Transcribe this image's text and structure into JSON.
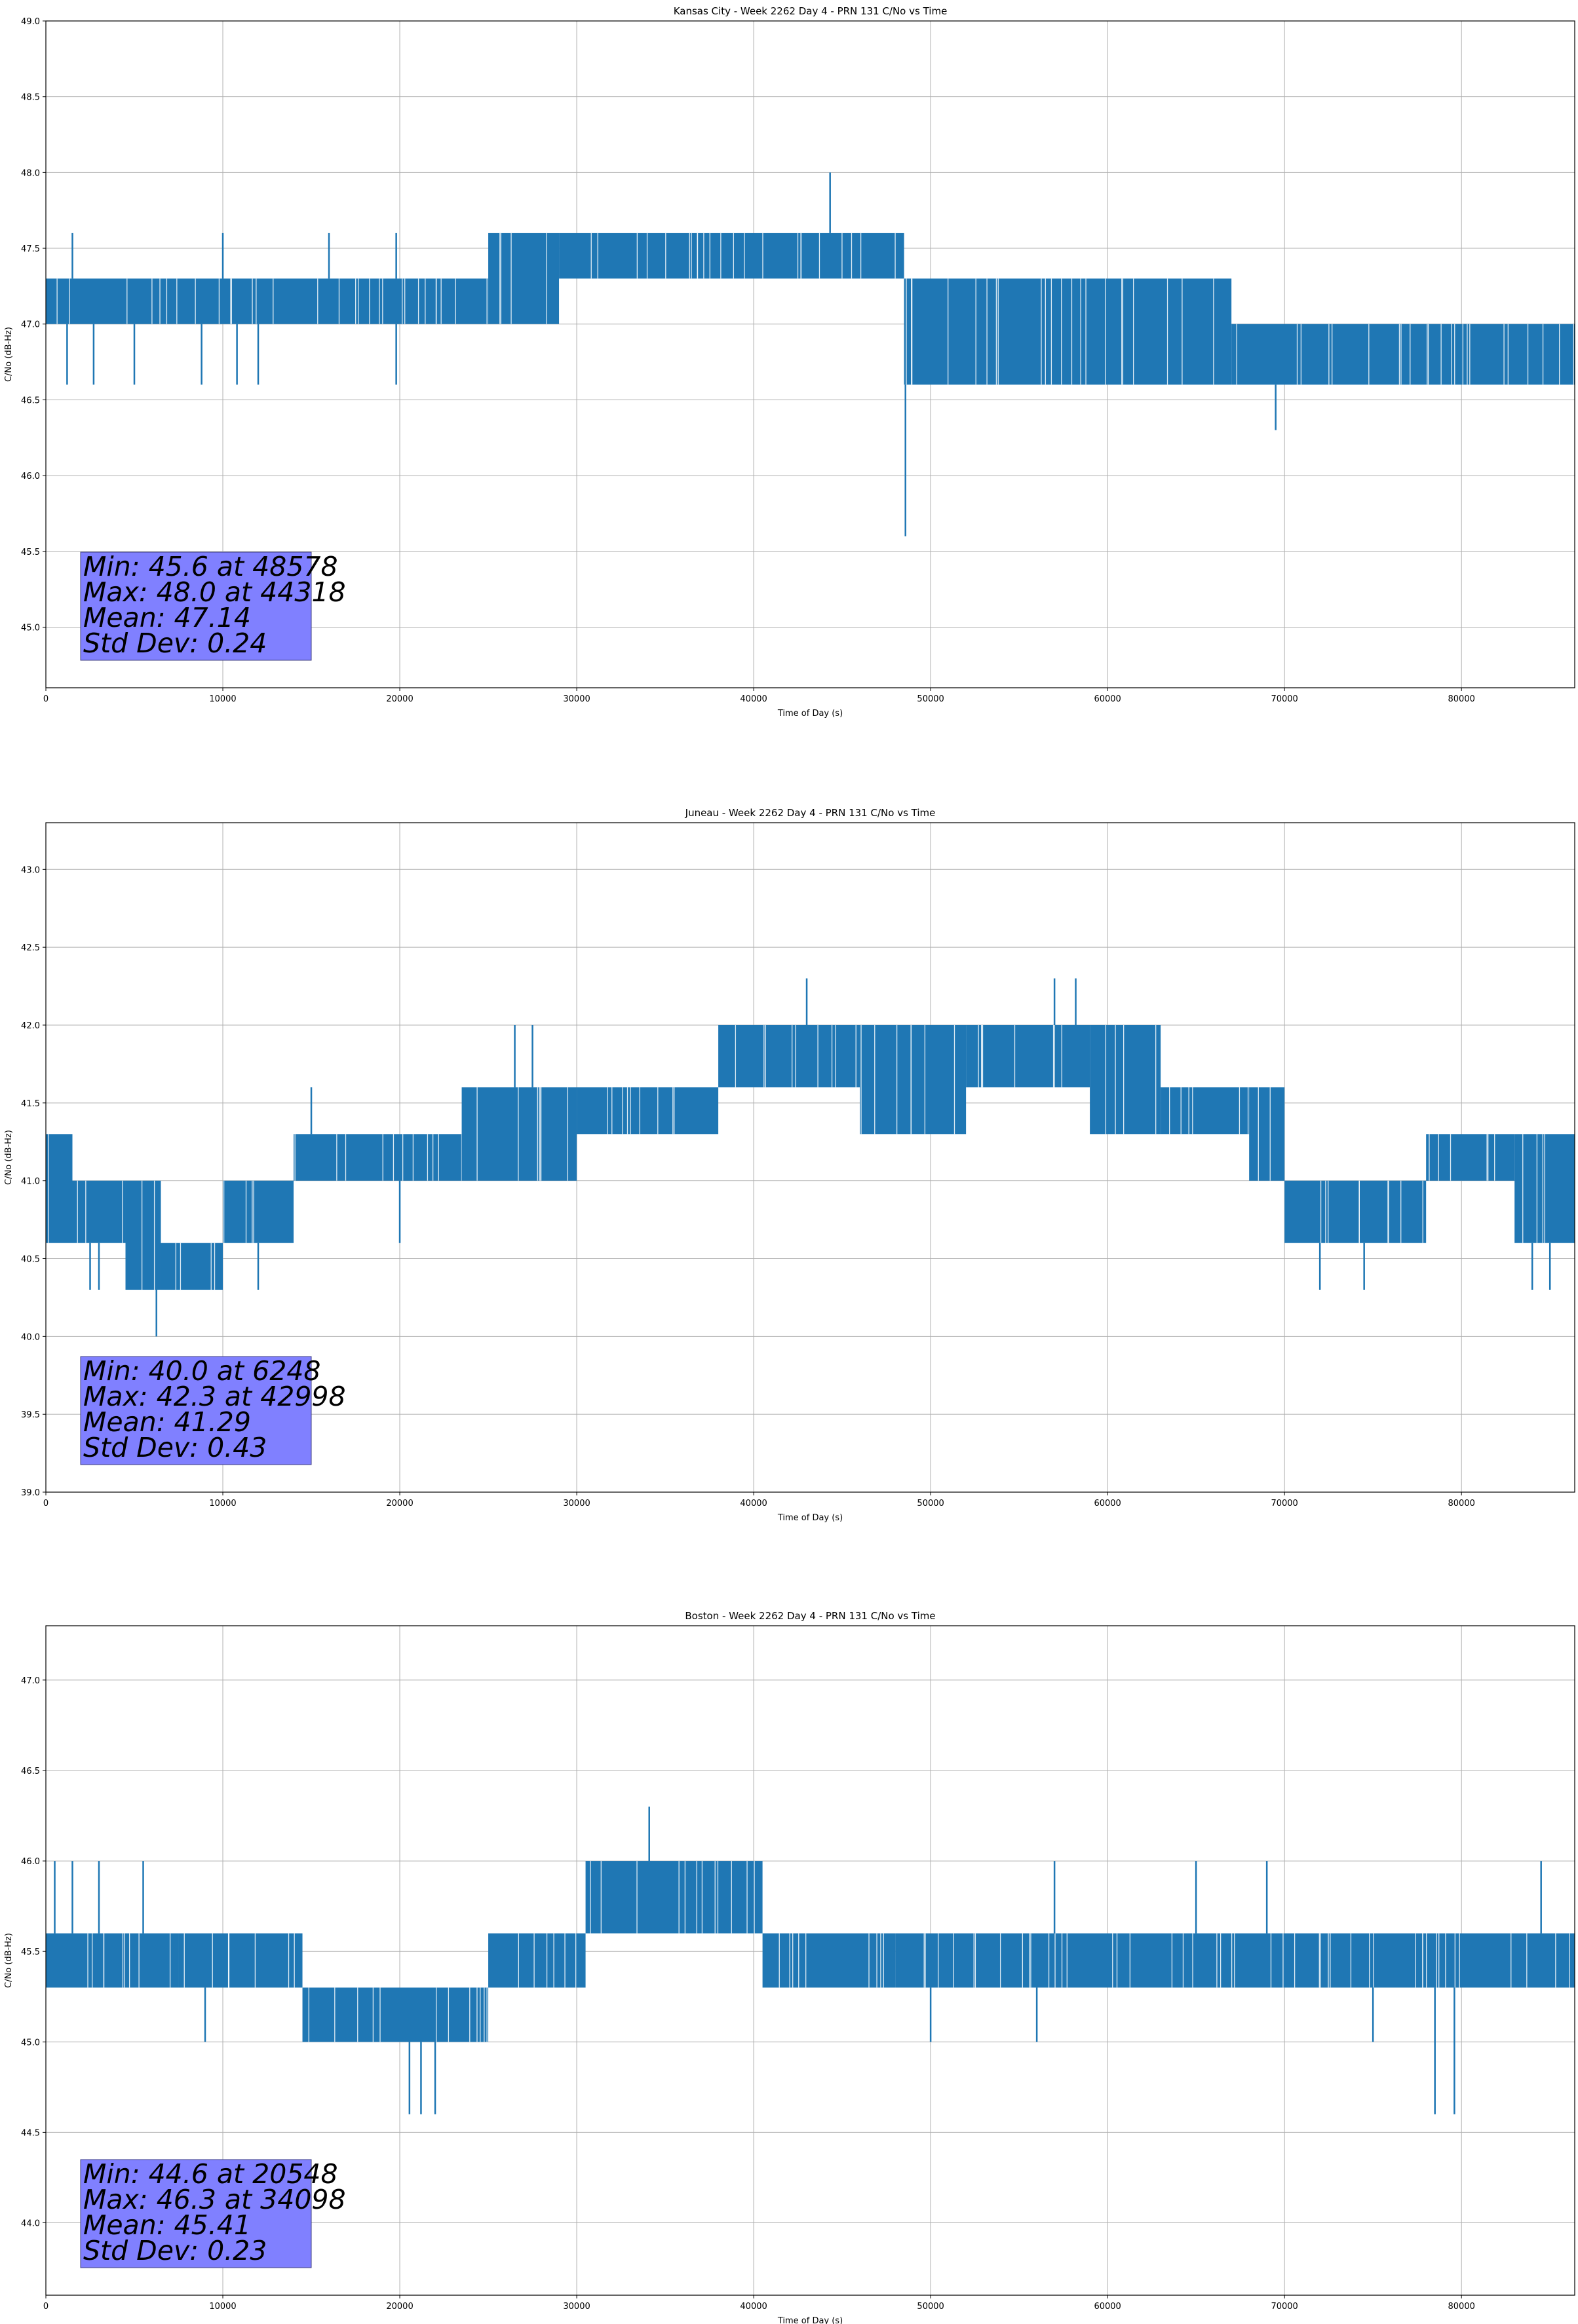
{
  "chart_data": [
    {
      "type": "line",
      "title": "Kansas City - Week 2262 Day 4 - PRN 131 C/No vs Time",
      "xlabel": "Time of Day (s)",
      "ylabel": "C/No (dB-Hz)",
      "xlim": [
        0,
        86400
      ],
      "ylim": [
        44.6,
        49.0
      ],
      "xticks": [
        0,
        10000,
        20000,
        30000,
        40000,
        50000,
        60000,
        70000,
        80000
      ],
      "yticks": [
        "45.0",
        "45.5",
        "46.0",
        "46.5",
        "47.0",
        "47.5",
        "48.0",
        "48.5",
        "49.0"
      ],
      "grid": true,
      "color": "#1f77b4",
      "stats": [
        "Min: 45.6 at 48578",
        "Max: 48.0 at 44318",
        "Mean: 47.14",
        "Std Dev: 0.24"
      ],
      "stats_box_color": "#8080ff",
      "bands": [
        {
          "x0": 0,
          "x1": 2000,
          "low": 47.0,
          "high": 47.3
        },
        {
          "x0": 2000,
          "x1": 25000,
          "low": 47.0,
          "high": 47.3
        },
        {
          "x0": 25000,
          "x1": 29000,
          "low": 47.0,
          "high": 47.6
        },
        {
          "x0": 29000,
          "x1": 48500,
          "low": 47.3,
          "high": 47.6
        },
        {
          "x0": 48500,
          "x1": 67000,
          "low": 46.6,
          "high": 47.3
        },
        {
          "x0": 67000,
          "x1": 86400,
          "low": 46.6,
          "high": 47.0
        }
      ],
      "spikes": [
        {
          "x": 44318,
          "value": 48.0
        },
        {
          "x": 48578,
          "value": 45.6
        },
        {
          "x": 69500,
          "value": 46.3
        },
        {
          "x": 1500,
          "value": 47.6
        },
        {
          "x": 10000,
          "value": 47.6
        },
        {
          "x": 16000,
          "value": 47.6
        },
        {
          "x": 19800,
          "value": 47.6
        },
        {
          "x": 1200,
          "value": 46.6
        },
        {
          "x": 2700,
          "value": 46.6
        },
        {
          "x": 5000,
          "value": 46.6
        },
        {
          "x": 8800,
          "value": 46.6
        },
        {
          "x": 10800,
          "value": 46.6
        },
        {
          "x": 12000,
          "value": 46.6
        },
        {
          "x": 19800,
          "value": 46.6
        }
      ]
    },
    {
      "type": "line",
      "title": "Juneau - Week 2262 Day 4 - PRN 131 C/No vs Time",
      "xlabel": "Time of Day (s)",
      "ylabel": "C/No (dB-Hz)",
      "xlim": [
        0,
        86400
      ],
      "ylim": [
        39.0,
        43.3
      ],
      "xticks": [
        0,
        10000,
        20000,
        30000,
        40000,
        50000,
        60000,
        70000,
        80000
      ],
      "yticks": [
        "39.0",
        "39.5",
        "40.0",
        "40.5",
        "41.0",
        "41.5",
        "42.0",
        "42.5",
        "43.0"
      ],
      "grid": true,
      "color": "#1f77b4",
      "stats": [
        "Min: 40.0 at 6248",
        "Max: 42.3 at 42998",
        "Mean: 41.29",
        "Std Dev: 0.43"
      ],
      "stats_box_color": "#8080ff",
      "bands": [
        {
          "x0": 0,
          "x1": 1500,
          "low": 40.6,
          "high": 41.3
        },
        {
          "x0": 1500,
          "x1": 4500,
          "low": 40.6,
          "high": 41.0
        },
        {
          "x0": 4500,
          "x1": 6500,
          "low": 40.3,
          "high": 41.0
        },
        {
          "x0": 6500,
          "x1": 10000,
          "low": 40.3,
          "high": 40.6
        },
        {
          "x0": 10000,
          "x1": 14000,
          "low": 40.6,
          "high": 41.0
        },
        {
          "x0": 14000,
          "x1": 23500,
          "low": 41.0,
          "high": 41.3
        },
        {
          "x0": 23500,
          "x1": 30000,
          "low": 41.0,
          "high": 41.6
        },
        {
          "x0": 30000,
          "x1": 38000,
          "low": 41.3,
          "high": 41.6
        },
        {
          "x0": 38000,
          "x1": 46000,
          "low": 41.6,
          "high": 42.0
        },
        {
          "x0": 46000,
          "x1": 52000,
          "low": 41.3,
          "high": 42.0
        },
        {
          "x0": 52000,
          "x1": 59000,
          "low": 41.6,
          "high": 42.0
        },
        {
          "x0": 59000,
          "x1": 63000,
          "low": 41.3,
          "high": 42.0
        },
        {
          "x0": 63000,
          "x1": 68000,
          "low": 41.3,
          "high": 41.6
        },
        {
          "x0": 68000,
          "x1": 70000,
          "low": 41.0,
          "high": 41.6
        },
        {
          "x0": 70000,
          "x1": 78000,
          "low": 40.6,
          "high": 41.0
        },
        {
          "x0": 78000,
          "x1": 83000,
          "low": 41.0,
          "high": 41.3
        },
        {
          "x0": 83000,
          "x1": 86400,
          "low": 40.6,
          "high": 41.3
        }
      ],
      "spikes": [
        {
          "x": 6248,
          "value": 40.0
        },
        {
          "x": 42998,
          "value": 42.3
        },
        {
          "x": 57000,
          "value": 42.3
        },
        {
          "x": 58200,
          "value": 42.3
        },
        {
          "x": 2500,
          "value": 40.3
        },
        {
          "x": 3000,
          "value": 40.3
        },
        {
          "x": 12000,
          "value": 40.3
        },
        {
          "x": 72000,
          "value": 40.3
        },
        {
          "x": 74500,
          "value": 40.3
        },
        {
          "x": 84000,
          "value": 40.3
        },
        {
          "x": 85000,
          "value": 40.3
        },
        {
          "x": 26500,
          "value": 42.0
        },
        {
          "x": 27500,
          "value": 42.0
        },
        {
          "x": 15000,
          "value": 41.6
        },
        {
          "x": 20000,
          "value": 40.6
        }
      ]
    },
    {
      "type": "line",
      "title": "Boston - Week 2262 Day 4 - PRN 131 C/No vs Time",
      "xlabel": "Time of Day (s)",
      "ylabel": "C/No (dB-Hz)",
      "xlim": [
        0,
        86400
      ],
      "ylim": [
        43.6,
        47.3
      ],
      "xticks": [
        0,
        10000,
        20000,
        30000,
        40000,
        50000,
        60000,
        70000,
        80000
      ],
      "yticks": [
        "44.0",
        "44.5",
        "45.0",
        "45.5",
        "46.0",
        "46.5",
        "47.0"
      ],
      "grid": true,
      "color": "#1f77b4",
      "stats": [
        "Min: 44.6 at 20548",
        "Max: 46.3 at 34098",
        "Mean: 45.41",
        "Std Dev: 0.23"
      ],
      "stats_box_color": "#8080ff",
      "bands": [
        {
          "x0": 0,
          "x1": 7500,
          "low": 45.3,
          "high": 45.6
        },
        {
          "x0": 7500,
          "x1": 14500,
          "low": 45.3,
          "high": 45.6
        },
        {
          "x0": 14500,
          "x1": 25000,
          "low": 45.0,
          "high": 45.3
        },
        {
          "x0": 25000,
          "x1": 30500,
          "low": 45.3,
          "high": 45.6
        },
        {
          "x0": 30500,
          "x1": 40500,
          "low": 45.6,
          "high": 46.0
        },
        {
          "x0": 40500,
          "x1": 48000,
          "low": 45.3,
          "high": 45.6
        },
        {
          "x0": 48000,
          "x1": 86400,
          "low": 45.3,
          "high": 45.6
        }
      ],
      "spikes": [
        {
          "x": 34098,
          "value": 46.3
        },
        {
          "x": 20548,
          "value": 44.6
        },
        {
          "x": 21200,
          "value": 44.6
        },
        {
          "x": 22000,
          "value": 44.6
        },
        {
          "x": 78500,
          "value": 44.6
        },
        {
          "x": 79600,
          "value": 44.6
        },
        {
          "x": 500,
          "value": 46.0
        },
        {
          "x": 1500,
          "value": 46.0
        },
        {
          "x": 3000,
          "value": 46.0
        },
        {
          "x": 5500,
          "value": 46.0
        },
        {
          "x": 57000,
          "value": 46.0
        },
        {
          "x": 65000,
          "value": 46.0
        },
        {
          "x": 69000,
          "value": 46.0
        },
        {
          "x": 84500,
          "value": 46.0
        },
        {
          "x": 9000,
          "value": 45.0
        },
        {
          "x": 50000,
          "value": 45.0
        },
        {
          "x": 56000,
          "value": 45.0
        },
        {
          "x": 75000,
          "value": 45.0
        }
      ]
    }
  ]
}
